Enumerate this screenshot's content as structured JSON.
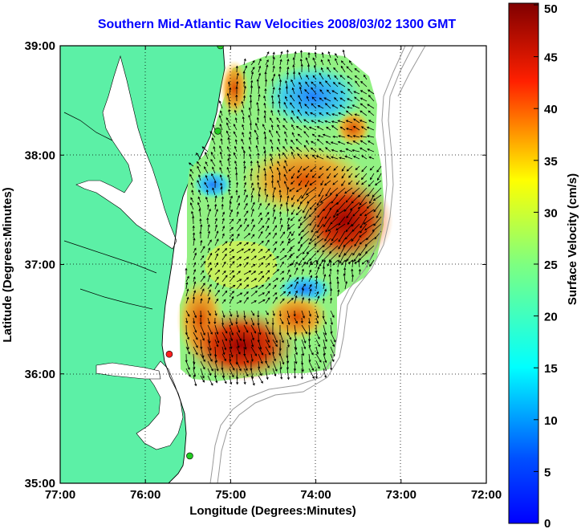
{
  "title": "Southern Mid-Atlantic Raw Velocities 2008/03/02 1300 GMT",
  "x_axis": {
    "label": "Longitude (Degrees:Minutes)",
    "ticks": [
      "77:00",
      "76:00",
      "75:00",
      "74:00",
      "73:00",
      "72:00"
    ]
  },
  "y_axis": {
    "label": "Latitude (Degrees:Minutes)",
    "ticks": [
      "39:00",
      "38:00",
      "37:00",
      "36:00",
      "35:00"
    ]
  },
  "colorbar": {
    "label": "Surface Velocity (cm/s)",
    "ticks": [
      "50",
      "45",
      "40",
      "35",
      "30",
      "25",
      "20",
      "15",
      "10",
      "5",
      "0"
    ],
    "range": [
      0,
      50
    ],
    "colormap": "jet"
  },
  "map": {
    "lon_range": [
      -77,
      -72
    ],
    "lat_range": [
      35,
      39
    ],
    "land_color": "#5cf0a6",
    "water_color": "#ffffff",
    "grid": "dotted"
  },
  "stations": [
    {
      "lon": -75.12,
      "lat": 39.0,
      "color": "#22cc22"
    },
    {
      "lon": -75.15,
      "lat": 38.22,
      "color": "#22cc22"
    },
    {
      "lon": -75.72,
      "lat": 36.18,
      "color": "#ff2020"
    },
    {
      "lon": -75.48,
      "lat": 35.25,
      "color": "#22cc22"
    }
  ]
}
